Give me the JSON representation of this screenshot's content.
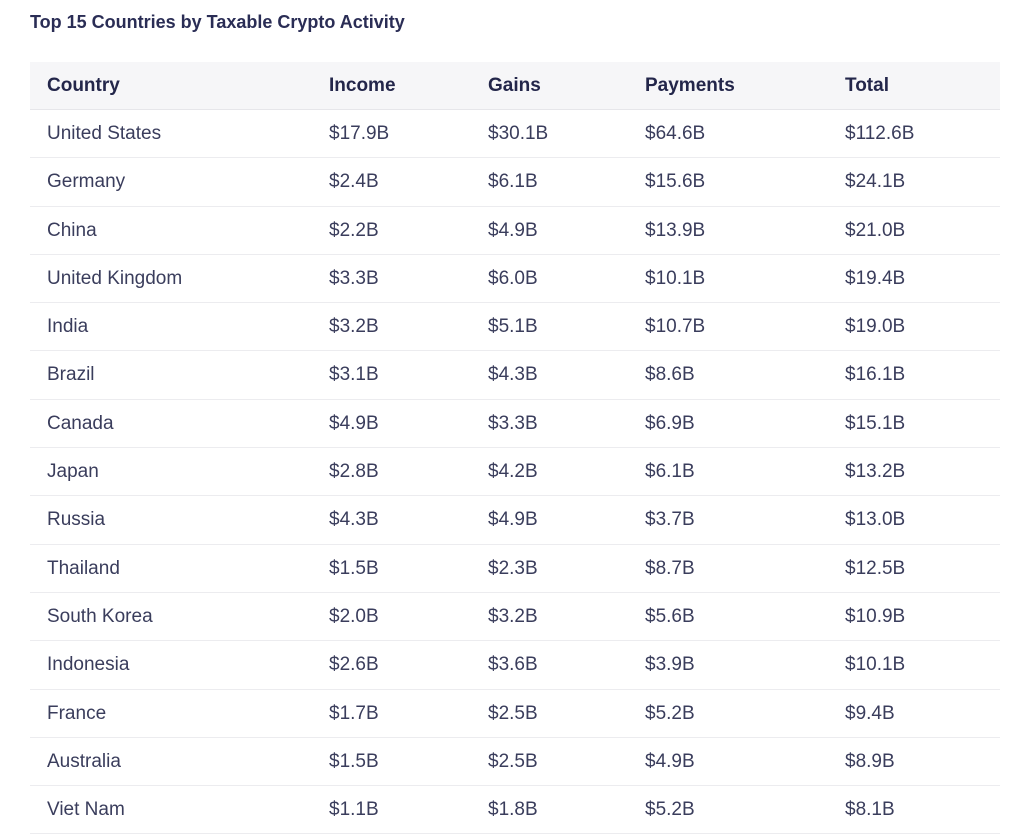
{
  "title": "Top 15 Countries by Taxable Crypto Activity",
  "table": {
    "header": [
      "Country",
      "Income",
      "Gains",
      "Payments",
      "Total"
    ],
    "rows": [
      [
        "United States",
        "$17.9B",
        "$30.1B",
        "$64.6B",
        "$112.6B"
      ],
      [
        "Germany",
        "$2.4B",
        "$6.1B",
        "$15.6B",
        "$24.1B"
      ],
      [
        "China",
        "$2.2B",
        "$4.9B",
        "$13.9B",
        "$21.0B"
      ],
      [
        "United Kingdom",
        "$3.3B",
        "$6.0B",
        "$10.1B",
        "$19.4B"
      ],
      [
        "India",
        "$3.2B",
        "$5.1B",
        "$10.7B",
        "$19.0B"
      ],
      [
        "Brazil",
        "$3.1B",
        "$4.3B",
        "$8.6B",
        "$16.1B"
      ],
      [
        "Canada",
        "$4.9B",
        "$3.3B",
        "$6.9B",
        "$15.1B"
      ],
      [
        "Japan",
        "$2.8B",
        "$4.2B",
        "$6.1B",
        "$13.2B"
      ],
      [
        "Russia",
        "$4.3B",
        "$4.9B",
        "$3.7B",
        "$13.0B"
      ],
      [
        "Thailand",
        "$1.5B",
        "$2.3B",
        "$8.7B",
        "$12.5B"
      ],
      [
        "South Korea",
        "$2.0B",
        "$3.2B",
        "$5.6B",
        "$10.9B"
      ],
      [
        "Indonesia",
        "$2.6B",
        "$3.6B",
        "$3.9B",
        "$10.1B"
      ],
      [
        "France",
        "$1.7B",
        "$2.5B",
        "$5.2B",
        "$9.4B"
      ],
      [
        "Australia",
        "$1.5B",
        "$2.5B",
        "$4.9B",
        "$8.9B"
      ],
      [
        "Viet Nam",
        "$1.1B",
        "$1.8B",
        "$5.2B",
        "$8.1B"
      ]
    ]
  }
}
